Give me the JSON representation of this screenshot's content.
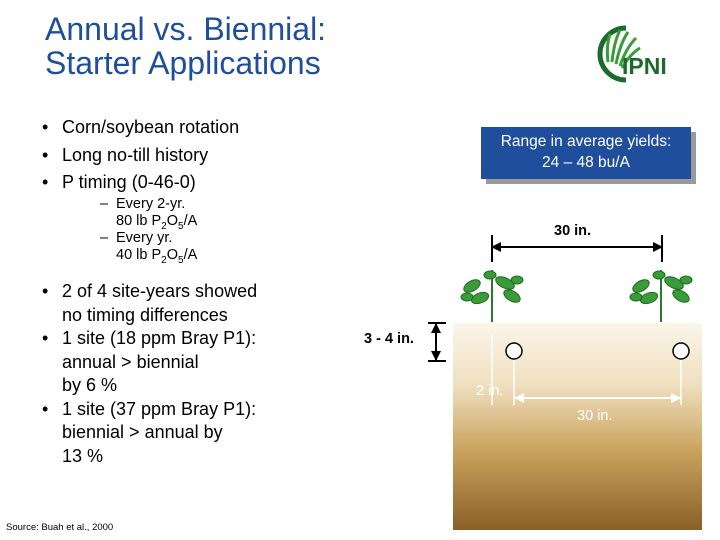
{
  "slide": {
    "title_line1": "Annual vs. Biennial:",
    "title_line2": "Starter Applications",
    "logo_text": "IPNI",
    "bullets_top": [
      "Corn/soybean rotation",
      "Long no-till history",
      "P timing (0-46-0)"
    ],
    "sub_bullets": [
      {
        "label": "Every 2-yr.",
        "rate": "80",
        "unit_prefix": "lb P",
        "sub1": "2",
        "mid": "O",
        "sub2": "5",
        "suffix": "/A"
      },
      {
        "label": "Every yr.",
        "rate": "40",
        "unit_prefix": "lb P",
        "sub1": "2",
        "mid": "O",
        "sub2": "5",
        "suffix": "/A"
      }
    ],
    "bullets_results": [
      "2 of 4 site-years showed\nno timing differences",
      "1 site (18 ppm Bray P1):\nannual > biennial\nby 6 %",
      "1 site (37 ppm Bray P1):\n biennial > annual by\n13 %"
    ],
    "bullet_char": "•",
    "dash_char": "–",
    "source": "Source: Buah et al., 2000"
  },
  "diagram": {
    "yield_line1": "Range in average yields:",
    "yield_line2": "24 – 48 bu/A",
    "row_spacing_label": "30 in.",
    "depth_label": "3 - 4 in.",
    "offset_label": "2 in.",
    "band_spacing_label": "30 in.",
    "colors": {
      "box": "#1f4e9c",
      "plant": "#3a9b3a",
      "soil_dark": "#8a5f28"
    }
  }
}
